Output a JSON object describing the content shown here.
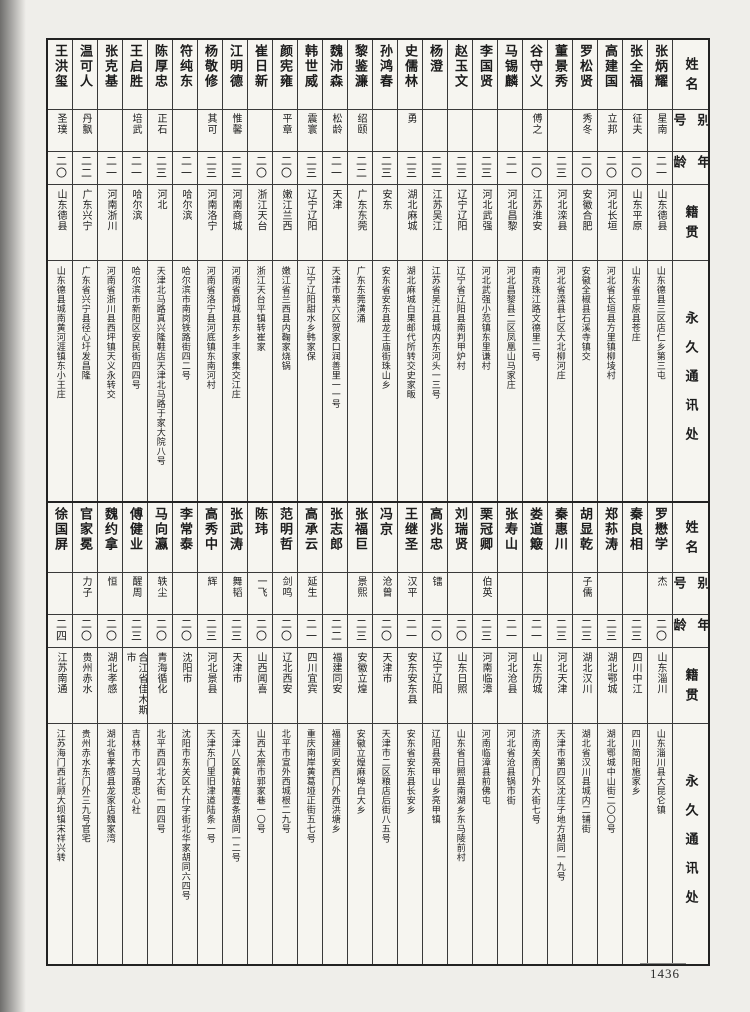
{
  "page": {
    "number": "1436"
  },
  "headers": {
    "name": "姓名",
    "alias": "别号",
    "age": "年龄",
    "native": "籍贯",
    "address": "永久通讯处"
  },
  "tables": [
    {
      "people": [
        {
          "name": "张炳耀",
          "alias": "星南",
          "age": "二一",
          "native": "山东德县",
          "address": "山东德县三区店仁乡第三屯"
        },
        {
          "name": "张全福",
          "alias": "征夫",
          "age": "二〇",
          "native": "山东平原",
          "address": "山东省平原县苍庄"
        },
        {
          "name": "高建国",
          "alias": "立邦",
          "age": "二〇",
          "native": "河北长垣",
          "address": "河北省长垣县方里镇柳堎村"
        },
        {
          "name": "罗松贤",
          "alias": "秀冬",
          "age": "二〇",
          "native": "安徽合肥",
          "address": "安徽全椒县石溪寺镇交"
        },
        {
          "name": "董景秀",
          "alias": "",
          "age": "二三",
          "native": "河北滦县",
          "address": "河北省滦县七区大北柳河庄"
        },
        {
          "name": "谷守义",
          "alias": "傅之",
          "age": "二〇",
          "native": "江苏淮安",
          "address": "南京珠江路文德里二号"
        },
        {
          "name": "马锡麟",
          "alias": "",
          "age": "二一",
          "native": "河北昌黎",
          "address": "河北昌黎县二区凤凰山马家庄"
        },
        {
          "name": "李国贤",
          "alias": "",
          "age": "二三",
          "native": "河北武强",
          "address": "河北武强小范镇东里谦村"
        },
        {
          "name": "赵玉文",
          "alias": "",
          "age": "二三",
          "native": "辽宁辽阳",
          "address": "辽宁省辽阳县南判甲炉村"
        },
        {
          "name": "杨澄",
          "alias": "",
          "age": "二三",
          "native": "江苏吴江",
          "address": "江苏省吴江县城内东河头一三号"
        },
        {
          "name": "史儒林",
          "alias": "勇",
          "age": "二三",
          "native": "湖北麻城",
          "address": "湖北麻城白果邮代所转交史家畈"
        },
        {
          "name": "孙鸿春",
          "alias": "",
          "age": "二三",
          "native": "安东",
          "address": "安东省安东县龙王庙街珠山乡"
        },
        {
          "name": "黎鉴濂",
          "alias": "绍颐",
          "age": "二二",
          "native": "广东东莞",
          "address": "广东东莞潢涌"
        },
        {
          "name": "魏沛森",
          "alias": "松龄",
          "age": "二一",
          "native": "天津",
          "address": "天津市第六区贺家口润善里一一号"
        },
        {
          "name": "韩世威",
          "alias": "震寰",
          "age": "二三",
          "native": "辽宁辽阳",
          "address": "辽宁辽阳甜水乡韩家保"
        },
        {
          "name": "颜宪雍",
          "alias": "平章",
          "age": "二〇",
          "native": "嫩江兰西",
          "address": "嫩江省兰西县内鞠家烧锅"
        },
        {
          "name": "崔日新",
          "alias": "",
          "age": "二〇",
          "native": "浙江天台",
          "address": "浙江天台平镇转崔家"
        },
        {
          "name": "江明德",
          "alias": "惟馨",
          "age": "二三",
          "native": "河南商城",
          "address": "河南省商城县东乡丰家集交江庄"
        },
        {
          "name": "杨敬修",
          "alias": "其可",
          "age": "二三",
          "native": "河南洛宁",
          "address": "河南省洛宁县河底镇东南河村"
        },
        {
          "name": "符纯东",
          "alias": "",
          "age": "二一",
          "native": "哈尔滨",
          "address": "哈尔滨市南岗铁路街四二号"
        },
        {
          "name": "陈厚忠",
          "alias": "正石",
          "age": "二三",
          "native": "河北",
          "address": "天津北马路真兴隆鞋店天津北马路于家大院八号"
        },
        {
          "name": "王启胜",
          "alias": "培武",
          "age": "二一",
          "native": "哈尔滨",
          "address": "哈尔滨市新阳区安民街四四号"
        },
        {
          "name": "张克基",
          "alias": "",
          "age": "二一",
          "native": "河南浙川",
          "address": "河南省浙川县西坪镇天义永转交"
        },
        {
          "name": "温可人",
          "alias": "丹飘",
          "age": "二二",
          "native": "广东兴宁",
          "address": "广东省兴宁县径心圩发昌隆"
        },
        {
          "name": "王洪玺",
          "alias": "圣璞",
          "age": "二〇",
          "native": "山东德县",
          "address": "山东德县城南黄河涯镇东小王庄"
        }
      ]
    },
    {
      "people": [
        {
          "name": "罗懋学",
          "alias": "杰",
          "age": "二〇",
          "native": "山东淄川",
          "address": "山东淄川县大昆仑镇"
        },
        {
          "name": "秦良相",
          "alias": "",
          "age": "二三",
          "native": "四川中江",
          "address": "四川简阳施家乡"
        },
        {
          "name": "郑荪涛",
          "alias": "",
          "age": "二三",
          "native": "湖北鄂城",
          "address": "湖北鄂城中山街二〇〇号"
        },
        {
          "name": "胡显乾",
          "alias": "子儒",
          "age": "二三",
          "native": "湖北汉川",
          "address": "湖北省汉川县城内二铺街"
        },
        {
          "name": "秦惠川",
          "alias": "",
          "age": "二三",
          "native": "河北天津",
          "address": "天津市第四区沈庄子地方胡同一九号"
        },
        {
          "name": "娄道簸",
          "alias": "",
          "age": "二一",
          "native": "山东历城",
          "address": "济南关南门外大街七号"
        },
        {
          "name": "张寿山",
          "alias": "",
          "age": "二一",
          "native": "河北沧县",
          "address": "河北省沧县锅市街"
        },
        {
          "name": "栗冠卿",
          "alias": "伯英",
          "age": "二三",
          "native": "河南临漳",
          "address": "河南临漳县前佛屯"
        },
        {
          "name": "刘瑞贤",
          "alias": "",
          "age": "二〇",
          "native": "山东日照",
          "address": "山东省日照县南湖乡东马陵前村"
        },
        {
          "name": "高兆忠",
          "alias": "镭",
          "age": "二〇",
          "native": "辽宁辽阳",
          "address": "辽阳县亮甲山乡亮甲镇"
        },
        {
          "name": "王继圣",
          "alias": "汉平",
          "age": "二一",
          "native": "安东安东县",
          "address": "安东省安东县长安乡"
        },
        {
          "name": "冯京",
          "alias": "沧曾",
          "age": "二〇",
          "native": "天津市",
          "address": "天津市二区粮店后街八五号"
        },
        {
          "name": "张福巨",
          "alias": "景熙",
          "age": "二三",
          "native": "安徽立煌",
          "address": "安徽立煌麻埠白大乡"
        },
        {
          "name": "张志郎",
          "alias": "",
          "age": "二二",
          "native": "福建同安",
          "address": "福建同安西门外西洪塘乡"
        },
        {
          "name": "高承云",
          "alias": "延生",
          "age": "二一",
          "native": "四川宜宾",
          "address": "重庆南岸黄葛垭正街五七号"
        },
        {
          "name": "范明哲",
          "alias": "剑鸣",
          "age": "二〇",
          "native": "辽北西安",
          "address": "北平市宣外西城根二九号"
        },
        {
          "name": "陈玮",
          "alias": "一飞",
          "age": "二〇",
          "native": "山西闻喜",
          "address": "山西太原市郭家巷一〇号"
        },
        {
          "name": "张武涛",
          "alias": "舞韬",
          "age": "二三",
          "native": "天津市",
          "address": "天津八区黄姑庵壹条胡同一二号"
        },
        {
          "name": "高秀中",
          "alias": "辉",
          "age": "二三",
          "native": "河北景县",
          "address": "天津东门里旧津道陆条一号"
        },
        {
          "name": "李常泰",
          "alias": "",
          "age": "二〇",
          "native": "沈阳市",
          "address": "沈阳市东关区大什字街北华家胡同六四号"
        },
        {
          "name": "马向瀛",
          "alias": "轶尘",
          "age": "二〇",
          "native": "青海循化",
          "address": "北平西四北大街一四四号"
        },
        {
          "name": "傅健业",
          "alias": "醒周",
          "age": "二三",
          "native": "合江省佳木斯市",
          "address": "吉林市大马路忠心社"
        },
        {
          "name": "魏约拿",
          "alias": "恒",
          "age": "二〇",
          "native": "湖北孝感",
          "address": "湖北省孝感县龙家店魏家湾"
        },
        {
          "name": "官家冕",
          "alias": "力子",
          "age": "二〇",
          "native": "贵州赤水",
          "address": "贵州赤水东门外三九号官宅"
        },
        {
          "name": "徐国屏",
          "alias": "",
          "age": "二四",
          "native": "江苏南通",
          "address": "江苏海门西北顾大坝镇宋祥兴转"
        }
      ]
    }
  ]
}
